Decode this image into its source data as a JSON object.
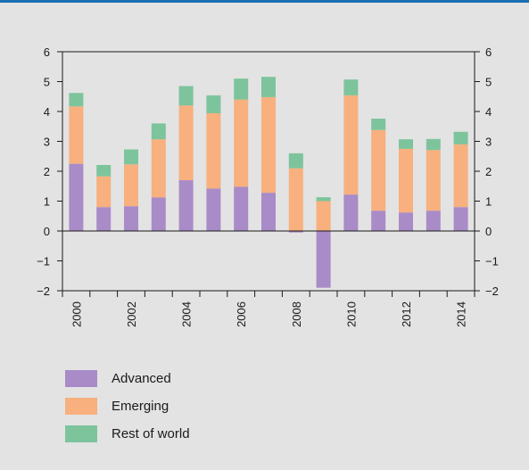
{
  "chart_data": {
    "type": "bar",
    "stacked": true,
    "categories": [
      "2000",
      "2001",
      "2002",
      "2003",
      "2004",
      "2005",
      "2006",
      "2007",
      "2008",
      "2009",
      "2010",
      "2011",
      "2012",
      "2013",
      "2014"
    ],
    "x_tick_labels": [
      "2000",
      "2002",
      "2004",
      "2006",
      "2008",
      "2010",
      "2012",
      "2014"
    ],
    "series": [
      {
        "name": "Advanced",
        "color": "#a98bc7",
        "values": [
          2.25,
          0.8,
          0.83,
          1.12,
          1.7,
          1.42,
          1.48,
          1.28,
          -0.05,
          -1.9,
          1.22,
          0.68,
          0.62,
          0.68,
          0.8
        ]
      },
      {
        "name": "Emerging",
        "color": "#f7b07e",
        "values": [
          1.92,
          1.03,
          1.4,
          1.95,
          2.5,
          2.52,
          2.92,
          3.2,
          2.1,
          1.0,
          3.32,
          2.7,
          2.13,
          2.03,
          2.1
        ]
      },
      {
        "name": "Rest of world",
        "color": "#7dc49d",
        "values": [
          0.45,
          0.38,
          0.5,
          0.53,
          0.65,
          0.6,
          0.7,
          0.68,
          0.5,
          0.13,
          0.53,
          0.38,
          0.32,
          0.37,
          0.42
        ]
      }
    ],
    "ylim": [
      -2,
      6
    ],
    "yticks": [
      -2,
      -1,
      0,
      1,
      2,
      3,
      4,
      5,
      6
    ],
    "ytick_labels": [
      "−2",
      "−1",
      "0",
      "1",
      "2",
      "3",
      "4",
      "5",
      "6"
    ],
    "dual_y_axis": true,
    "grid": false,
    "legend_position": "bottom-left",
    "title": "",
    "xlabel": "",
    "ylabel": ""
  },
  "legend": {
    "items": [
      {
        "label": "Advanced",
        "color": "#a98bc7"
      },
      {
        "label": "Emerging",
        "color": "#f7b07e"
      },
      {
        "label": "Rest of world",
        "color": "#7dc49d"
      }
    ]
  }
}
